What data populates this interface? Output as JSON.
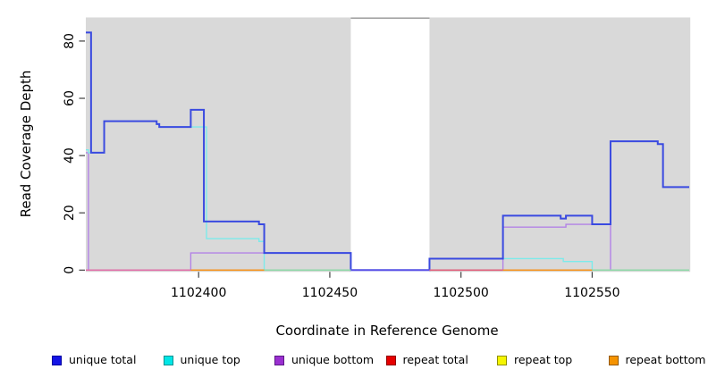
{
  "figure": {
    "background": "#ffffff",
    "plot_background": "#d9d9d9",
    "gap_top_border_color": "#9c9c9c",
    "tick_color": "#404040"
  },
  "chart_data": {
    "type": "line",
    "step": true,
    "title": "",
    "xlabel": "Coordinate in Reference Genome",
    "ylabel": "Read Coverage Depth",
    "xlim": [
      1102357,
      1102587
    ],
    "ylim": [
      0,
      88
    ],
    "x_ticks": [
      1102400,
      1102450,
      1102500,
      1102550
    ],
    "x_tick_labels": [
      "1102400",
      "1102450",
      "1102500",
      "1102550"
    ],
    "y_ticks": [
      0,
      20,
      40,
      60,
      80
    ],
    "y_tick_labels": [
      "0",
      "20",
      "40",
      "60",
      "80"
    ],
    "grid": false,
    "legend_position": "bottom",
    "coverage_gap": {
      "from": 1102458,
      "to": 1102488
    },
    "series": [
      {
        "name": "unique total",
        "color": "#3a4ae0",
        "width": 2,
        "points": [
          [
            1102357,
            83
          ],
          [
            1102359,
            41
          ],
          [
            1102364,
            52
          ],
          [
            1102384,
            51
          ],
          [
            1102385,
            50
          ],
          [
            1102397,
            56
          ],
          [
            1102402,
            17
          ],
          [
            1102423,
            16
          ],
          [
            1102425,
            6
          ],
          [
            1102458,
            0
          ],
          [
            1102488,
            4
          ],
          [
            1102516,
            19
          ],
          [
            1102538,
            18
          ],
          [
            1102540,
            19
          ],
          [
            1102550,
            16
          ],
          [
            1102557,
            45
          ],
          [
            1102575,
            44
          ],
          [
            1102577,
            29
          ],
          [
            1102587,
            29
          ]
        ]
      },
      {
        "name": "unique top",
        "color": "#7deaea",
        "width": 1.4,
        "points": [
          [
            1102357,
            42
          ],
          [
            1102358,
            41
          ],
          [
            1102364,
            52
          ],
          [
            1102384,
            51
          ],
          [
            1102385,
            50
          ],
          [
            1102403,
            11
          ],
          [
            1102423,
            10
          ],
          [
            1102425,
            0
          ],
          [
            1102488,
            4
          ],
          [
            1102539,
            3
          ],
          [
            1102550,
            0
          ],
          [
            1102587,
            0
          ]
        ]
      },
      {
        "name": "unique bottom",
        "color": "#b383e6",
        "width": 1.4,
        "points": [
          [
            1102357,
            41
          ],
          [
            1102358,
            0
          ],
          [
            1102397,
            6
          ],
          [
            1102458,
            0
          ],
          [
            1102516,
            15
          ],
          [
            1102540,
            16
          ],
          [
            1102557,
            0
          ],
          [
            1102587,
            0
          ]
        ]
      },
      {
        "name": "repeat total",
        "color": "#e0607c",
        "width": 1.2,
        "points": [
          [
            1102357,
            0
          ],
          [
            1102587,
            0
          ]
        ]
      },
      {
        "name": "repeat top",
        "color": "#f2f200",
        "width": 1.2,
        "points": [
          [
            1102357,
            0
          ],
          [
            1102587,
            0
          ]
        ]
      },
      {
        "name": "repeat bottom",
        "color": "#f5941e",
        "width": 1.2,
        "points": [
          [
            1102357,
            0
          ],
          [
            1102587,
            0
          ]
        ]
      }
    ],
    "zero_line_segments": [
      {
        "from": 1102357,
        "to": 1102397,
        "color": "#e070a8"
      },
      {
        "from": 1102397,
        "to": 1102425,
        "color": "#f5941e"
      },
      {
        "from": 1102425,
        "to": 1102458,
        "color": "#90d8a8"
      },
      {
        "from": 1102458,
        "to": 1102488,
        "color": "#5a50e6"
      },
      {
        "from": 1102488,
        "to": 1102516,
        "color": "#e0607c"
      },
      {
        "from": 1102516,
        "to": 1102550,
        "color": "#f5941e"
      },
      {
        "from": 1102550,
        "to": 1102587,
        "color": "#90d8a8"
      }
    ]
  },
  "legend": {
    "items": [
      {
        "label": "unique total",
        "fill": "#1414e6",
        "border": "#0000a0"
      },
      {
        "label": "unique top",
        "fill": "#00e6e6",
        "border": "#009090"
      },
      {
        "label": "unique bottom",
        "fill": "#9a2fd0",
        "border": "#5c1a85"
      },
      {
        "label": "repeat total",
        "fill": "#e60000",
        "border": "#900000"
      },
      {
        "label": "repeat top",
        "fill": "#f5f500",
        "border": "#909000"
      },
      {
        "label": "repeat bottom",
        "fill": "#f59300",
        "border": "#955a00"
      }
    ]
  }
}
